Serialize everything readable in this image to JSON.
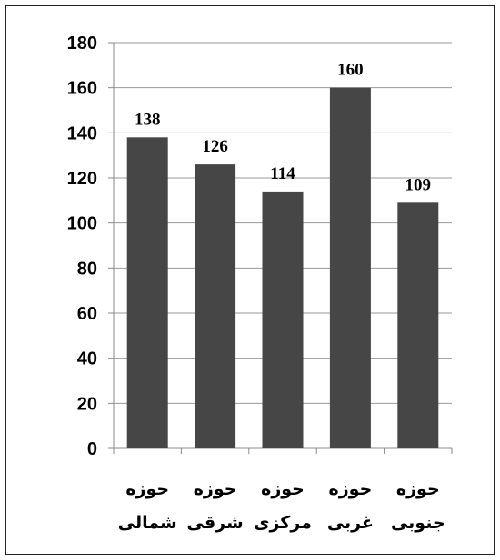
{
  "chart_data": {
    "type": "bar",
    "categories": [
      [
        "حوزه",
        "شمالی"
      ],
      [
        "حوزه",
        "شرقی"
      ],
      [
        "حوزه",
        "مرکزی"
      ],
      [
        "حوزه",
        "غربی"
      ],
      [
        "حوزه",
        "جنوبی"
      ]
    ],
    "values": [
      138,
      126,
      114,
      160,
      109
    ],
    "title": "",
    "xlabel": "",
    "ylabel": "",
    "ylim": [
      0,
      180
    ],
    "yticks": [
      0,
      20,
      40,
      60,
      80,
      100,
      120,
      140,
      160,
      180
    ],
    "grid": true,
    "legend": "none",
    "colors": {
      "bar": "#464646",
      "grid": "#9a9a9a",
      "axis": "#888888"
    }
  }
}
